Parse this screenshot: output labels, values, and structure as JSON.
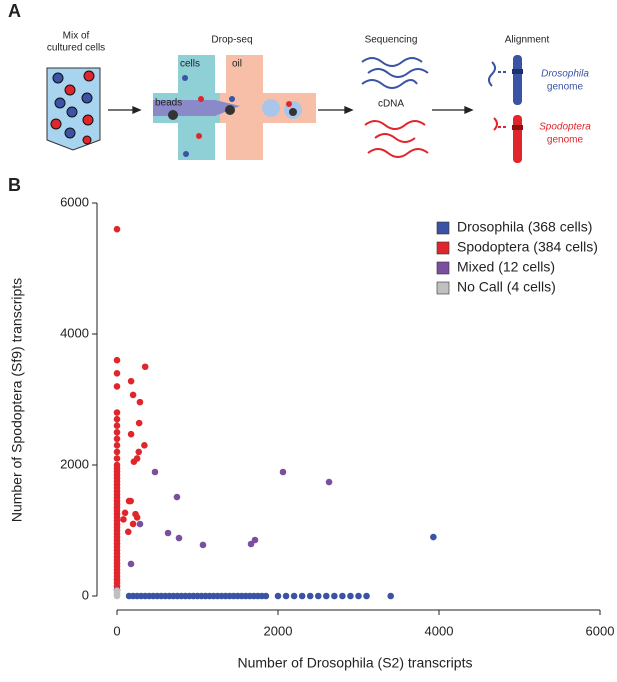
{
  "panel_a": {
    "label": "A",
    "mix": [
      "Mix of",
      "cultured cells"
    ],
    "dropseq": "Drop-seq",
    "cells": "cells",
    "oil": "oil",
    "beads": "beads",
    "sequencing": "Sequencing",
    "cdna": "cDNA",
    "alignment": "Alignment",
    "drosophila_genome": [
      "Drosophila",
      "genome"
    ],
    "spodoptera_genome": [
      "Spodoptera",
      "genome"
    ]
  },
  "chart_data": {
    "type": "scatter",
    "panel_label": "B",
    "xlabel": "Number of Drosophila (S2) transcripts",
    "ylabel": "Number of Spodoptera (Sf9) transcripts",
    "xlim": [
      0,
      6000
    ],
    "ylim": [
      0,
      6000
    ],
    "xticks": [
      0,
      2000,
      4000,
      6000
    ],
    "yticks": [
      0,
      2000,
      4000,
      6000
    ],
    "legend": "upper right",
    "series": [
      {
        "name": "Drosophila (368 cells)",
        "color": "#3a53a4",
        "x": [
          150,
          200,
          250,
          300,
          350,
          400,
          450,
          500,
          550,
          600,
          650,
          700,
          750,
          800,
          850,
          900,
          950,
          1000,
          1050,
          1100,
          1150,
          1200,
          1250,
          1300,
          1350,
          1400,
          1450,
          1500,
          1550,
          1600,
          1650,
          1700,
          1750,
          1800,
          1850,
          2000,
          2100,
          2200,
          2300,
          2400,
          2500,
          2600,
          2700,
          2800,
          2900,
          3000,
          3100,
          3400,
          3930
        ],
        "values": [
          0,
          0,
          0,
          0,
          0,
          0,
          0,
          0,
          0,
          0,
          0,
          0,
          0,
          0,
          0,
          0,
          0,
          0,
          0,
          0,
          0,
          0,
          0,
          0,
          0,
          0,
          0,
          0,
          0,
          0,
          0,
          0,
          0,
          0,
          0,
          0,
          0,
          0,
          0,
          0,
          0,
          0,
          0,
          0,
          0,
          0,
          0,
          0,
          900
        ]
      },
      {
        "name": "Spodoptera (384 cells)",
        "color": "#e0262c",
        "x": [
          0,
          0,
          0,
          0,
          0,
          0,
          0,
          0,
          0,
          0,
          0,
          0,
          0,
          0,
          0,
          0,
          0,
          0,
          0,
          0,
          0,
          0,
          0,
          0,
          0,
          0,
          0,
          0,
          0,
          0,
          0,
          0,
          0,
          0,
          0,
          0,
          0,
          0,
          0,
          0,
          0,
          0,
          0,
          0,
          0,
          0,
          0,
          0,
          0,
          0,
          0,
          350,
          175,
          200,
          285,
          275,
          175,
          340,
          270,
          250,
          210,
          150,
          170,
          100,
          230,
          200,
          250,
          140,
          80
        ],
        "values": [
          5600,
          3600,
          3400,
          3200,
          2800,
          2700,
          2600,
          2500,
          2400,
          2300,
          2200,
          2100,
          2000,
          1950,
          1900,
          1850,
          1800,
          1750,
          1700,
          1650,
          1600,
          1550,
          1500,
          1450,
          1400,
          1350,
          1300,
          1250,
          1200,
          1150,
          1100,
          1050,
          1000,
          950,
          900,
          850,
          800,
          750,
          700,
          650,
          600,
          550,
          500,
          450,
          400,
          350,
          300,
          250,
          200,
          150,
          100,
          3500,
          3280,
          3070,
          2960,
          2640,
          2470,
          2300,
          2200,
          2100,
          2050,
          1450,
          1450,
          1270,
          1250,
          1100,
          1200,
          980,
          1170
        ]
      },
      {
        "name": "Mixed (12 cells)",
        "color": "#7b4fa0",
        "x": [
          472,
          745,
          286,
          634,
          770,
          1068,
          1665,
          1714,
          2062,
          2634,
          174,
          0
        ],
        "values": [
          1893,
          1511,
          1099,
          962,
          885,
          779,
          794,
          855,
          1893,
          1740,
          489,
          90
        ]
      },
      {
        "name": "No Call (4 cells)",
        "color": "#c0c0c0",
        "x": [
          0,
          0,
          0,
          0
        ],
        "values": [
          0,
          20,
          50,
          80
        ]
      }
    ]
  }
}
